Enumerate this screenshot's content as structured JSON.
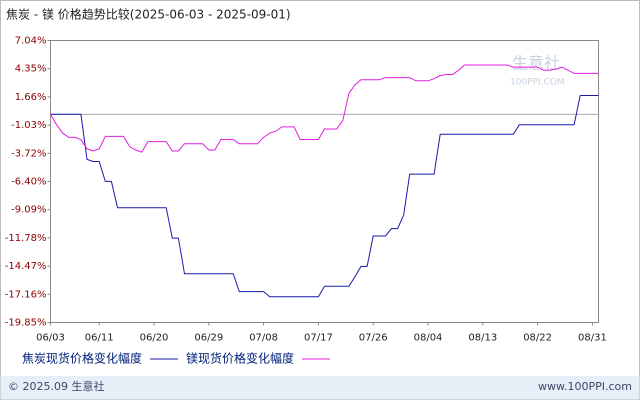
{
  "chart_data": {
    "type": "line",
    "title": "焦炭 - 镁 价格趋势比较(2025-06-03 - 2025-09-01)",
    "categories": [
      "06/03",
      null,
      null,
      null,
      null,
      null,
      null,
      null,
      "06/11",
      null,
      null,
      null,
      null,
      null,
      null,
      null,
      null,
      "06/20",
      null,
      null,
      null,
      null,
      null,
      null,
      null,
      null,
      "06/29",
      null,
      null,
      null,
      null,
      null,
      null,
      null,
      null,
      "07/08",
      null,
      null,
      null,
      null,
      null,
      null,
      null,
      null,
      "07/17",
      null,
      null,
      null,
      null,
      null,
      null,
      null,
      null,
      "07/26",
      null,
      null,
      null,
      null,
      null,
      null,
      null,
      null,
      "08/04",
      null,
      null,
      null,
      null,
      null,
      null,
      null,
      null,
      "08/13",
      null,
      null,
      null,
      null,
      null,
      null,
      null,
      null,
      "08/22",
      null,
      null,
      null,
      null,
      null,
      null,
      null,
      null,
      "08/31",
      null
    ],
    "series": [
      {
        "name": "焦炭现货价格变化幅度",
        "color": "#1a1aa8",
        "values": [
          0,
          0,
          0,
          0,
          0,
          0,
          -4.3,
          -4.5,
          -4.5,
          -6.4,
          -6.4,
          -8.9,
          -8.9,
          -8.9,
          -8.9,
          -8.9,
          -8.9,
          -8.9,
          -8.9,
          -8.9,
          -11.8,
          -11.8,
          -15.2,
          -15.2,
          -15.2,
          -15.2,
          -15.2,
          -15.2,
          -15.2,
          -15.2,
          -15.2,
          -16.9,
          -16.9,
          -16.9,
          -16.9,
          -16.9,
          -17.4,
          -17.4,
          -17.4,
          -17.4,
          -17.4,
          -17.4,
          -17.4,
          -17.4,
          -17.4,
          -16.4,
          -16.4,
          -16.4,
          -16.4,
          -16.4,
          -15.5,
          -14.5,
          -14.5,
          -11.6,
          -11.6,
          -11.6,
          -10.9,
          -10.9,
          -9.6,
          -5.7,
          -5.7,
          -5.7,
          -5.7,
          -5.7,
          -1.9,
          -1.9,
          -1.9,
          -1.9,
          -1.9,
          -1.9,
          -1.9,
          -1.9,
          -1.9,
          -1.9,
          -1.9,
          -1.9,
          -1.9,
          -1.0,
          -1.0,
          -1.0,
          -1.0,
          -1.0,
          -1.0,
          -1.0,
          -1.0,
          -1.0,
          -1.0,
          1.8,
          1.8,
          1.8,
          1.8
        ]
      },
      {
        "name": "镁现货价格变化幅度",
        "color": "#e01ee0",
        "values": [
          0,
          -1.0,
          -1.8,
          -2.2,
          -2.2,
          -2.4,
          -3.3,
          -3.5,
          -3.3,
          -2.1,
          -2.1,
          -2.1,
          -2.1,
          -3.1,
          -3.4,
          -3.6,
          -2.6,
          -2.6,
          -2.6,
          -2.6,
          -3.5,
          -3.5,
          -2.8,
          -2.8,
          -2.8,
          -2.8,
          -3.4,
          -3.4,
          -2.4,
          -2.4,
          -2.4,
          -2.8,
          -2.8,
          -2.8,
          -2.8,
          -2.2,
          -1.8,
          -1.6,
          -1.2,
          -1.2,
          -1.2,
          -2.4,
          -2.4,
          -2.4,
          -2.4,
          -1.4,
          -1.4,
          -1.4,
          -0.6,
          2.0,
          2.8,
          3.3,
          3.3,
          3.3,
          3.3,
          3.5,
          3.5,
          3.5,
          3.5,
          3.5,
          3.2,
          3.2,
          3.2,
          3.4,
          3.7,
          3.8,
          3.8,
          4.2,
          4.7,
          4.7,
          4.7,
          4.7,
          4.7,
          4.7,
          4.7,
          4.7,
          4.5,
          4.5,
          4.5,
          4.5,
          4.5,
          4.2,
          4.2,
          4.3,
          4.5,
          4.2,
          3.9,
          3.9,
          3.9,
          3.9,
          3.9
        ]
      }
    ],
    "ylim": [
      -19.85,
      7.04
    ],
    "yticks": [
      {
        "value": 7.04,
        "label": "7.04%"
      },
      {
        "value": 4.35,
        "label": "4.35%"
      },
      {
        "value": 1.66,
        "label": "1.66%"
      },
      {
        "value": -1.03,
        "label": "-1.03%"
      },
      {
        "value": -3.72,
        "label": "-3.72%"
      },
      {
        "value": -6.4,
        "label": "-6.40%"
      },
      {
        "value": -9.09,
        "label": "-9.09%"
      },
      {
        "value": -11.78,
        "label": "-11.78%"
      },
      {
        "value": -14.47,
        "label": "-14.47%"
      },
      {
        "value": -17.16,
        "label": "-17.16%"
      },
      {
        "value": -19.85,
        "label": "-19.85%"
      }
    ],
    "zero_line": true,
    "watermark": [
      "生意社",
      "100PPI.COM"
    ],
    "footer": [
      "© 2025.09 生意社",
      "www.100PPI.com"
    ]
  }
}
